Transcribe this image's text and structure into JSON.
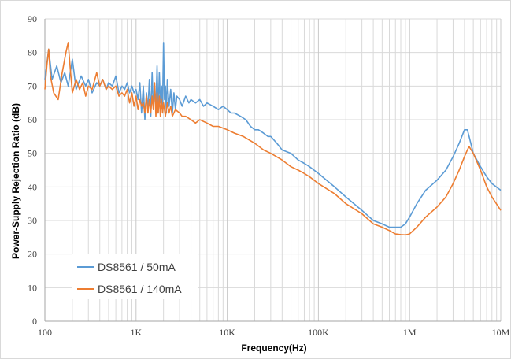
{
  "chart_data": {
    "type": "line",
    "title": "",
    "xlabel": "Frequency(Hz)",
    "ylabel": "Power-Supply Rejection Ratio (dB)",
    "x_scale": "log",
    "xlim": [
      100,
      10000000
    ],
    "ylim": [
      0,
      90
    ],
    "grid": true,
    "legend_position": "bottom-left",
    "x_ticks": [
      {
        "value": 100,
        "label": "100"
      },
      {
        "value": 1000,
        "label": "1K"
      },
      {
        "value": 10000,
        "label": "10K"
      },
      {
        "value": 100000,
        "label": "100K"
      },
      {
        "value": 1000000,
        "label": "1M"
      },
      {
        "value": 10000000,
        "label": "10M"
      }
    ],
    "y_ticks": [
      0,
      10,
      20,
      30,
      40,
      50,
      60,
      70,
      80,
      90
    ],
    "series": [
      {
        "name": "DS8561 / 50mA",
        "color": "#5b9bd5",
        "x": [
          100,
          110,
          120,
          135,
          150,
          165,
          180,
          200,
          220,
          250,
          280,
          300,
          330,
          370,
          400,
          430,
          470,
          500,
          550,
          600,
          650,
          700,
          750,
          800,
          850,
          900,
          950,
          1000,
          1050,
          1100,
          1150,
          1200,
          1250,
          1300,
          1350,
          1400,
          1450,
          1500,
          1550,
          1600,
          1650,
          1700,
          1750,
          1800,
          1850,
          1900,
          1950,
          2000,
          2050,
          2100,
          2150,
          2200,
          2300,
          2400,
          2500,
          2600,
          2700,
          2800,
          3000,
          3200,
          3500,
          3800,
          4000,
          4500,
          5000,
          5500,
          6000,
          7000,
          8000,
          9000,
          10000,
          11000,
          12000,
          14000,
          16000,
          18000,
          20000,
          22000,
          25000,
          28000,
          30000,
          35000,
          40000,
          50000,
          60000,
          70000,
          80000,
          100000,
          150000,
          200000,
          300000,
          400000,
          500000,
          600000,
          700000,
          800000,
          900000,
          1000000,
          1200000,
          1500000,
          2000000,
          2500000,
          3000000,
          3500000,
          4000000,
          4300000,
          4500000,
          5000000,
          6000000,
          7000000,
          8000000,
          10000000
        ],
        "y": [
          72,
          81,
          72,
          76,
          71,
          74,
          70,
          78,
          69,
          73,
          70,
          72,
          68,
          71,
          70,
          72,
          69,
          71,
          70,
          73,
          68,
          70,
          69,
          71,
          68,
          70,
          68,
          69,
          66,
          71,
          62,
          70,
          60,
          68,
          63,
          72,
          61,
          74,
          63,
          69,
          64,
          76,
          62,
          74,
          65,
          70,
          63,
          83,
          66,
          70,
          62,
          72,
          64,
          69,
          62,
          68,
          63,
          67,
          66,
          64,
          67,
          65,
          66,
          65,
          66,
          64,
          65,
          64,
          63,
          64,
          63,
          62,
          62,
          61,
          60,
          58,
          57,
          57,
          56,
          55,
          55,
          53,
          51,
          50,
          48,
          47,
          46,
          44,
          40,
          37,
          33,
          30,
          29,
          28,
          28,
          28,
          29,
          31,
          35,
          39,
          42,
          45,
          49,
          53,
          57,
          57,
          55,
          50,
          46,
          43,
          41,
          39
        ]
      },
      {
        "name": "DS8561 / 140mA",
        "color": "#ed7d31",
        "x": [
          100,
          105,
          110,
          115,
          125,
          140,
          155,
          170,
          180,
          190,
          200,
          220,
          240,
          260,
          280,
          300,
          330,
          370,
          400,
          430,
          470,
          500,
          550,
          600,
          650,
          700,
          750,
          800,
          850,
          900,
          950,
          1000,
          1050,
          1100,
          1150,
          1200,
          1250,
          1300,
          1350,
          1400,
          1450,
          1500,
          1550,
          1600,
          1650,
          1700,
          1750,
          1800,
          1850,
          1900,
          1950,
          2000,
          2100,
          2200,
          2300,
          2400,
          2500,
          2700,
          3000,
          3200,
          3500,
          4000,
          4500,
          5000,
          6000,
          7000,
          8000,
          10000,
          12000,
          15000,
          20000,
          25000,
          30000,
          40000,
          50000,
          60000,
          70000,
          80000,
          100000,
          150000,
          200000,
          300000,
          400000,
          500000,
          600000,
          700000,
          800000,
          900000,
          1000000,
          1200000,
          1500000,
          2000000,
          2500000,
          3000000,
          3500000,
          4000000,
          4300000,
          4500000,
          5000000,
          6000000,
          7000000,
          8000000,
          10000000
        ],
        "y": [
          69,
          76,
          81,
          73,
          68,
          66,
          74,
          80,
          83,
          75,
          68,
          72,
          69,
          71,
          67,
          70,
          69,
          74,
          70,
          72,
          69,
          70,
          69,
          70,
          67,
          68,
          67,
          69,
          65,
          68,
          64,
          67,
          63,
          66,
          64,
          65,
          62,
          67,
          62,
          66,
          62,
          67,
          63,
          71,
          61,
          68,
          62,
          67,
          61,
          66,
          62,
          65,
          61,
          65,
          62,
          64,
          61,
          63,
          62,
          61,
          61,
          60,
          59,
          60,
          59,
          58,
          58,
          57,
          56,
          55,
          53,
          51,
          50,
          48,
          46,
          45,
          44,
          43,
          41,
          38,
          35,
          32,
          29,
          28,
          27,
          26,
          25.8,
          25.7,
          26,
          28,
          31,
          34,
          37,
          41,
          45,
          49,
          51,
          52,
          50,
          45,
          40,
          37,
          33
        ]
      }
    ]
  }
}
